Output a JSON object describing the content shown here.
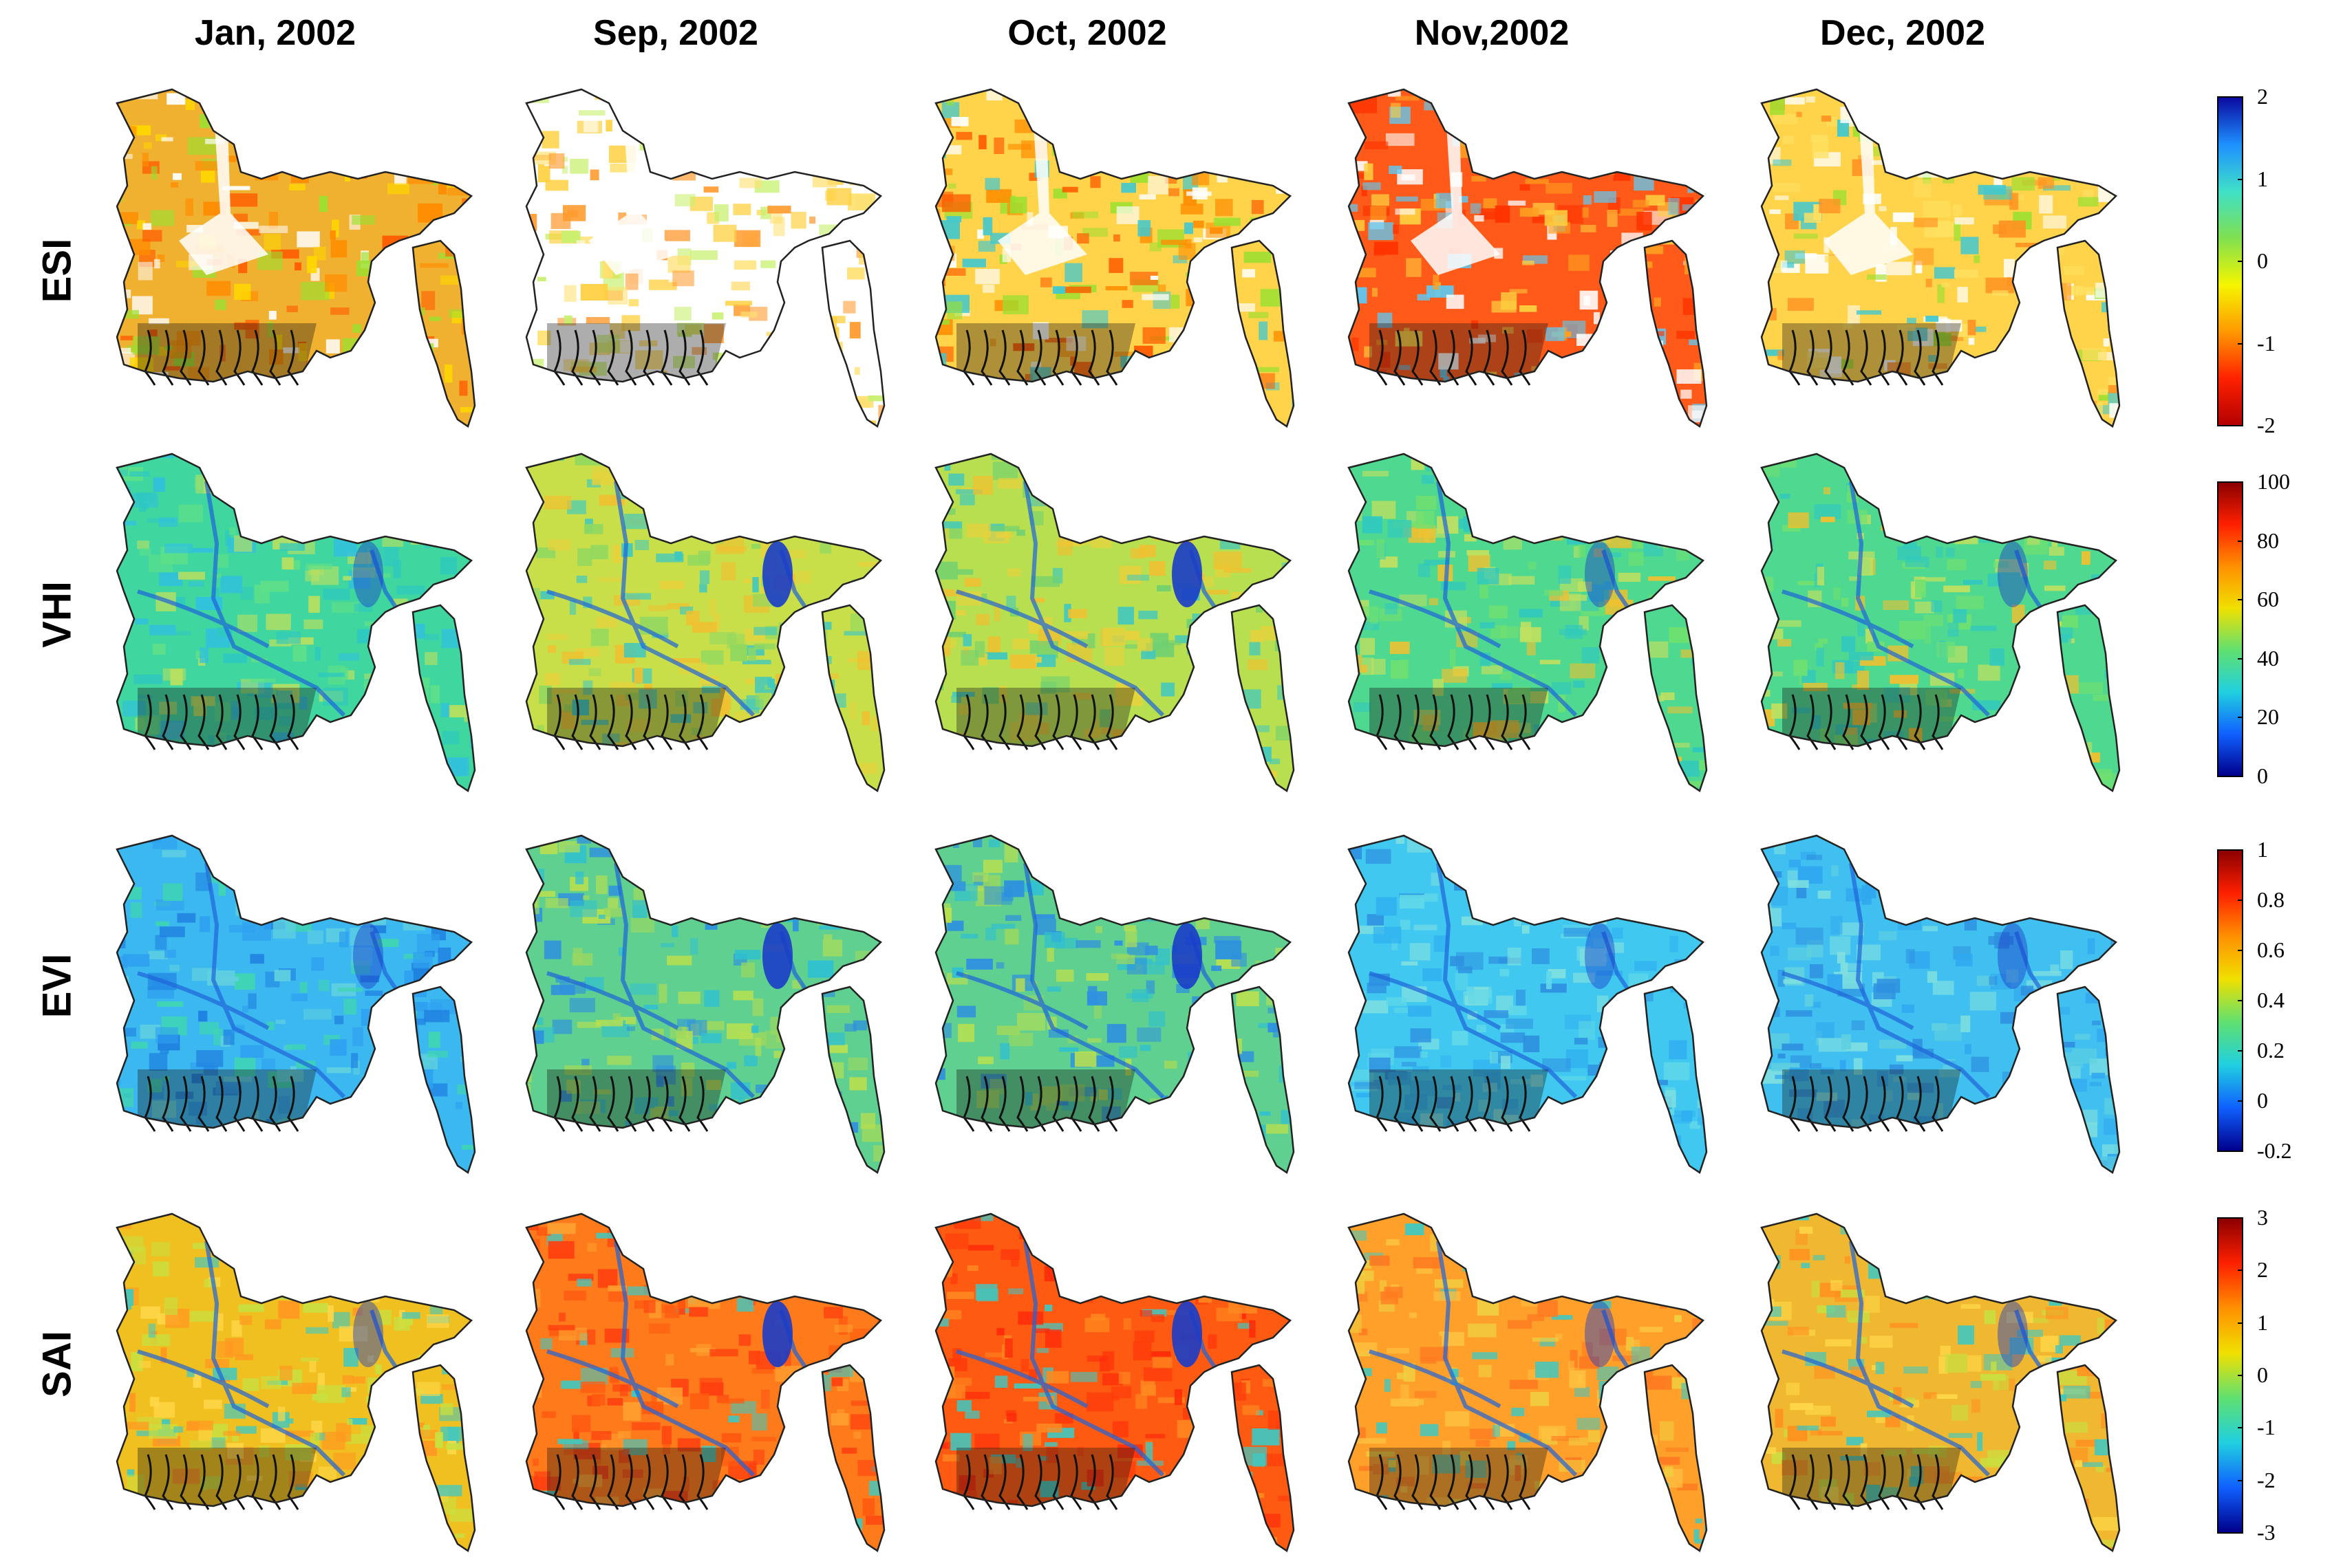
{
  "columns": [
    "Jan, 2002",
    "Sep, 2002",
    "Oct, 2002",
    "Nov,2002",
    "Dec, 2002"
  ],
  "rows": [
    {
      "label": "ESI",
      "colorbar": {
        "min": -2,
        "max": 2,
        "ticks": [
          "2",
          "1",
          "0",
          "-1",
          "-2"
        ],
        "stops": [
          "#0a0aa0",
          "#1e90ff",
          "#3fe0c8",
          "#7fe050",
          "#f5f500",
          "#ff9900",
          "#ff2200",
          "#b40000"
        ]
      },
      "panels": [
        {
          "base": "#f0b030",
          "mix": [
            "#ff8c00",
            "#ffd700",
            "#ff5a00",
            "#9be030",
            "#ffffff"
          ]
        },
        {
          "base": "#ffffff",
          "mix": [
            "#ffe070",
            "#ff9b30",
            "#ffffff",
            "#ffd040",
            "#c8f070"
          ]
        },
        {
          "base": "#ffd34a",
          "mix": [
            "#ff8c00",
            "#9be030",
            "#40c8d0",
            "#ffffff",
            "#ff5a00"
          ]
        },
        {
          "base": "#ff5a1a",
          "mix": [
            "#ff3300",
            "#ffa020",
            "#ffffff",
            "#ffd040",
            "#60c8f0"
          ]
        },
        {
          "base": "#ffd34a",
          "mix": [
            "#ff9020",
            "#9be030",
            "#ffffff",
            "#40c8d0",
            "#ffe060"
          ]
        }
      ]
    },
    {
      "label": "VHI",
      "colorbar": {
        "min": 0,
        "max": 100,
        "ticks": [
          "100",
          "80",
          "60",
          "40",
          "20",
          "0"
        ],
        "stops": [
          "#8b0000",
          "#ff2000",
          "#ff9000",
          "#f0e000",
          "#60e070",
          "#20d0e0",
          "#1060ff",
          "#00008b"
        ]
      },
      "panels": [
        {
          "base": "#3fd6a0",
          "mix": [
            "#5ee088",
            "#2ec8c0",
            "#b8e060",
            "#30c0e0"
          ]
        },
        {
          "base": "#c8df4a",
          "mix": [
            "#e6d23c",
            "#90d860",
            "#3fc8c0",
            "#f0c030"
          ]
        },
        {
          "base": "#b8df50",
          "mix": [
            "#e6d23c",
            "#70d070",
            "#40c8c0",
            "#f0c030"
          ]
        },
        {
          "base": "#4fd890",
          "mix": [
            "#70e070",
            "#30c8c0",
            "#c0e060",
            "#f0c030"
          ]
        },
        {
          "base": "#4fd890",
          "mix": [
            "#70e070",
            "#30c8c0",
            "#c0e060",
            "#f0c030"
          ]
        }
      ]
    },
    {
      "label": "EVI",
      "colorbar": {
        "min": -0.2,
        "max": 1,
        "ticks": [
          "1",
          "0.8",
          "0.6",
          "0.4",
          "0.2",
          "0",
          "-0.2"
        ],
        "stops": [
          "#8b0000",
          "#ff2000",
          "#ff9000",
          "#f0e000",
          "#60e070",
          "#20d0e0",
          "#1060ff",
          "#00008b"
        ]
      },
      "panels": [
        {
          "base": "#3cb8f0",
          "mix": [
            "#2ea0f0",
            "#60d0e0",
            "#3fd6b0",
            "#1e80e0"
          ]
        },
        {
          "base": "#5fd090",
          "mix": [
            "#b8df50",
            "#30c0d0",
            "#2e90e0",
            "#9ad860"
          ]
        },
        {
          "base": "#5fd090",
          "mix": [
            "#b8df50",
            "#30c0d0",
            "#2e90e0",
            "#9ad860"
          ]
        },
        {
          "base": "#40c8f0",
          "mix": [
            "#30b0f0",
            "#60d8e8",
            "#2e90e0",
            "#80e0e0"
          ]
        },
        {
          "base": "#40c0f0",
          "mix": [
            "#30a8f0",
            "#60d0e0",
            "#2e90e0",
            "#80e0e0"
          ]
        }
      ]
    },
    {
      "label": "SAI",
      "colorbar": {
        "min": -3,
        "max": 3,
        "ticks": [
          "3",
          "2",
          "1",
          "0",
          "-1",
          "-2",
          "-3"
        ],
        "stops": [
          "#8b0000",
          "#ff2000",
          "#ff9000",
          "#f0e000",
          "#60e070",
          "#20d0e0",
          "#1060ff",
          "#00008b"
        ]
      },
      "panels": [
        {
          "base": "#f0c020",
          "mix": [
            "#ffd84a",
            "#ff9820",
            "#c8e040",
            "#40c8c0"
          ]
        },
        {
          "base": "#ff7a1a",
          "mix": [
            "#ff5a10",
            "#ffa030",
            "#ff4010",
            "#40c8c0"
          ]
        },
        {
          "base": "#ff5a12",
          "mix": [
            "#ff3a0a",
            "#ff8a20",
            "#ff2a0a",
            "#40c8c0"
          ]
        },
        {
          "base": "#ffa02a",
          "mix": [
            "#ffc040",
            "#ff7a20",
            "#f0d040",
            "#40c8c0"
          ]
        },
        {
          "base": "#f0b830",
          "mix": [
            "#ffd84a",
            "#ff9020",
            "#c8e040",
            "#40c8c0"
          ]
        }
      ]
    }
  ]
}
